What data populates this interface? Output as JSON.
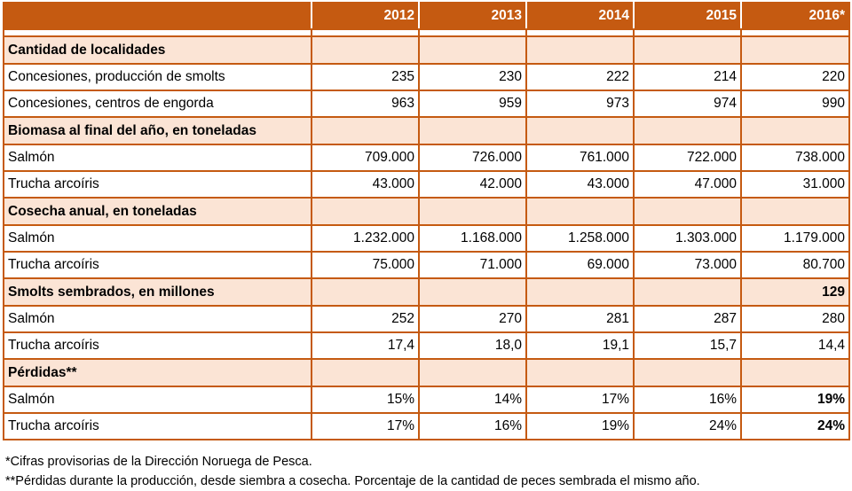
{
  "header": {
    "years": [
      "2012",
      "2013",
      "2014",
      "2015",
      "2016*"
    ]
  },
  "sections": [
    {
      "title": "Cantidad de localidades",
      "title_values": [
        "",
        "",
        "",
        "",
        ""
      ],
      "rows": [
        {
          "label": "Concesiones, producción de smolts",
          "values": [
            "235",
            "230",
            "222",
            "214",
            "220"
          ]
        },
        {
          "label": "Concesiones, centros de engorda",
          "values": [
            "963",
            "959",
            "973",
            "974",
            "990"
          ]
        }
      ]
    },
    {
      "title": "Biomasa al final del año, en toneladas",
      "title_values": [
        "",
        "",
        "",
        "",
        ""
      ],
      "rows": [
        {
          "label": "Salmón",
          "values": [
            "709.000",
            "726.000",
            "761.000",
            "722.000",
            "738.000"
          ]
        },
        {
          "label": "Trucha arcoíris",
          "values": [
            "43.000",
            "42.000",
            "43.000",
            "47.000",
            "31.000"
          ]
        }
      ]
    },
    {
      "title": "Cosecha anual, en toneladas",
      "title_values": [
        "",
        "",
        "",
        "",
        ""
      ],
      "rows": [
        {
          "label": "Salmón",
          "values": [
            "1.232.000",
            "1.168.000",
            "1.258.000",
            "1.303.000",
            "1.179.000"
          ]
        },
        {
          "label": "Trucha arcoíris",
          "values": [
            "75.000",
            "71.000",
            "69.000",
            "73.000",
            "80.700"
          ]
        }
      ]
    },
    {
      "title": "Smolts sembrados, en millones",
      "title_values": [
        "",
        "",
        "",
        "",
        "129"
      ],
      "rows": [
        {
          "label": "Salmón",
          "values": [
            "252",
            "270",
            "281",
            "287",
            "280"
          ]
        },
        {
          "label": "Trucha arcoíris",
          "values": [
            "17,4",
            "18,0",
            "19,1",
            "15,7",
            "14,4"
          ]
        }
      ]
    },
    {
      "title": "Pérdidas**",
      "title_values": [
        "",
        "",
        "",
        "",
        ""
      ],
      "rows": [
        {
          "label": "Salmón",
          "values": [
            "15%",
            "14%",
            "17%",
            "16%",
            "19%"
          ]
        },
        {
          "label": "Trucha arcoíris",
          "values": [
            "17%",
            "16%",
            "19%",
            "24%",
            "24%"
          ]
        }
      ]
    }
  ],
  "notes": [
    "*Cifras provisorias de la Dirección Noruega de Pesca.",
    "**Pérdidas durante la producción, desde siembra a cosecha. Porcentaje de la cantidad de peces sembrada el mismo año."
  ],
  "colors": {
    "header_bg": "#c55a11",
    "section_bg": "#fbe4d5",
    "border": "#c55a11"
  }
}
